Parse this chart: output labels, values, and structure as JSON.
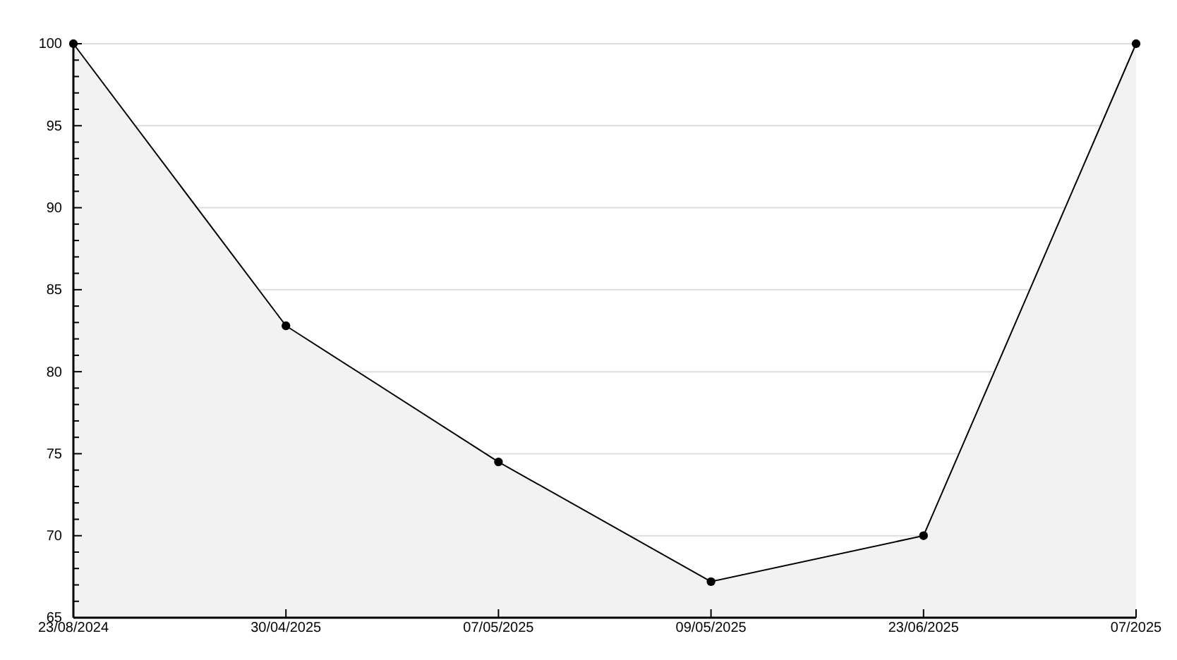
{
  "chart_data": {
    "type": "area",
    "categories": [
      "23/08/2024",
      "30/04/2025",
      "07/05/2025",
      "09/05/2025",
      "23/06/2025",
      "07/2025"
    ],
    "series": [
      {
        "color": "#000000",
        "values": [
          100,
          82.8,
          74.5,
          67.2,
          70,
          100
        ]
      }
    ],
    "ylim": [
      65,
      100
    ],
    "yticks": [
      65,
      {
        "value": 66,
        "label": null
      },
      {
        "value": 67,
        "label": null
      },
      {
        "value": 68,
        "label": null
      },
      {
        "value": 69,
        "label": null
      },
      70,
      {
        "value": 71,
        "label": null
      },
      {
        "value": 72,
        "label": null
      },
      {
        "value": 73,
        "label": null
      },
      {
        "value": 74,
        "label": null
      },
      75,
      {
        "value": 76,
        "label": null
      },
      {
        "value": 77,
        "label": null
      },
      {
        "value": 78,
        "label": null
      },
      {
        "value": 79,
        "label": null
      },
      80,
      {
        "value": 81,
        "label": null
      },
      {
        "value": 82,
        "label": null
      },
      {
        "value": 83,
        "label": null
      },
      {
        "value": 84,
        "label": null
      },
      85,
      {
        "value": 86,
        "label": null
      },
      {
        "value": 87,
        "label": null
      },
      {
        "value": 88,
        "label": null
      },
      {
        "value": 89,
        "label": null
      },
      90,
      {
        "value": 91,
        "label": null
      },
      {
        "value": 92,
        "label": null
      },
      {
        "value": 93,
        "label": null
      },
      {
        "value": 94,
        "label": null
      },
      95,
      {
        "value": 96,
        "label": null
      },
      {
        "value": 97,
        "label": null
      },
      {
        "value": 98,
        "label": null
      },
      {
        "value": 99,
        "label": null
      },
      100
    ],
    "grid": "y",
    "marker": "circle",
    "line_style": "solid"
  }
}
